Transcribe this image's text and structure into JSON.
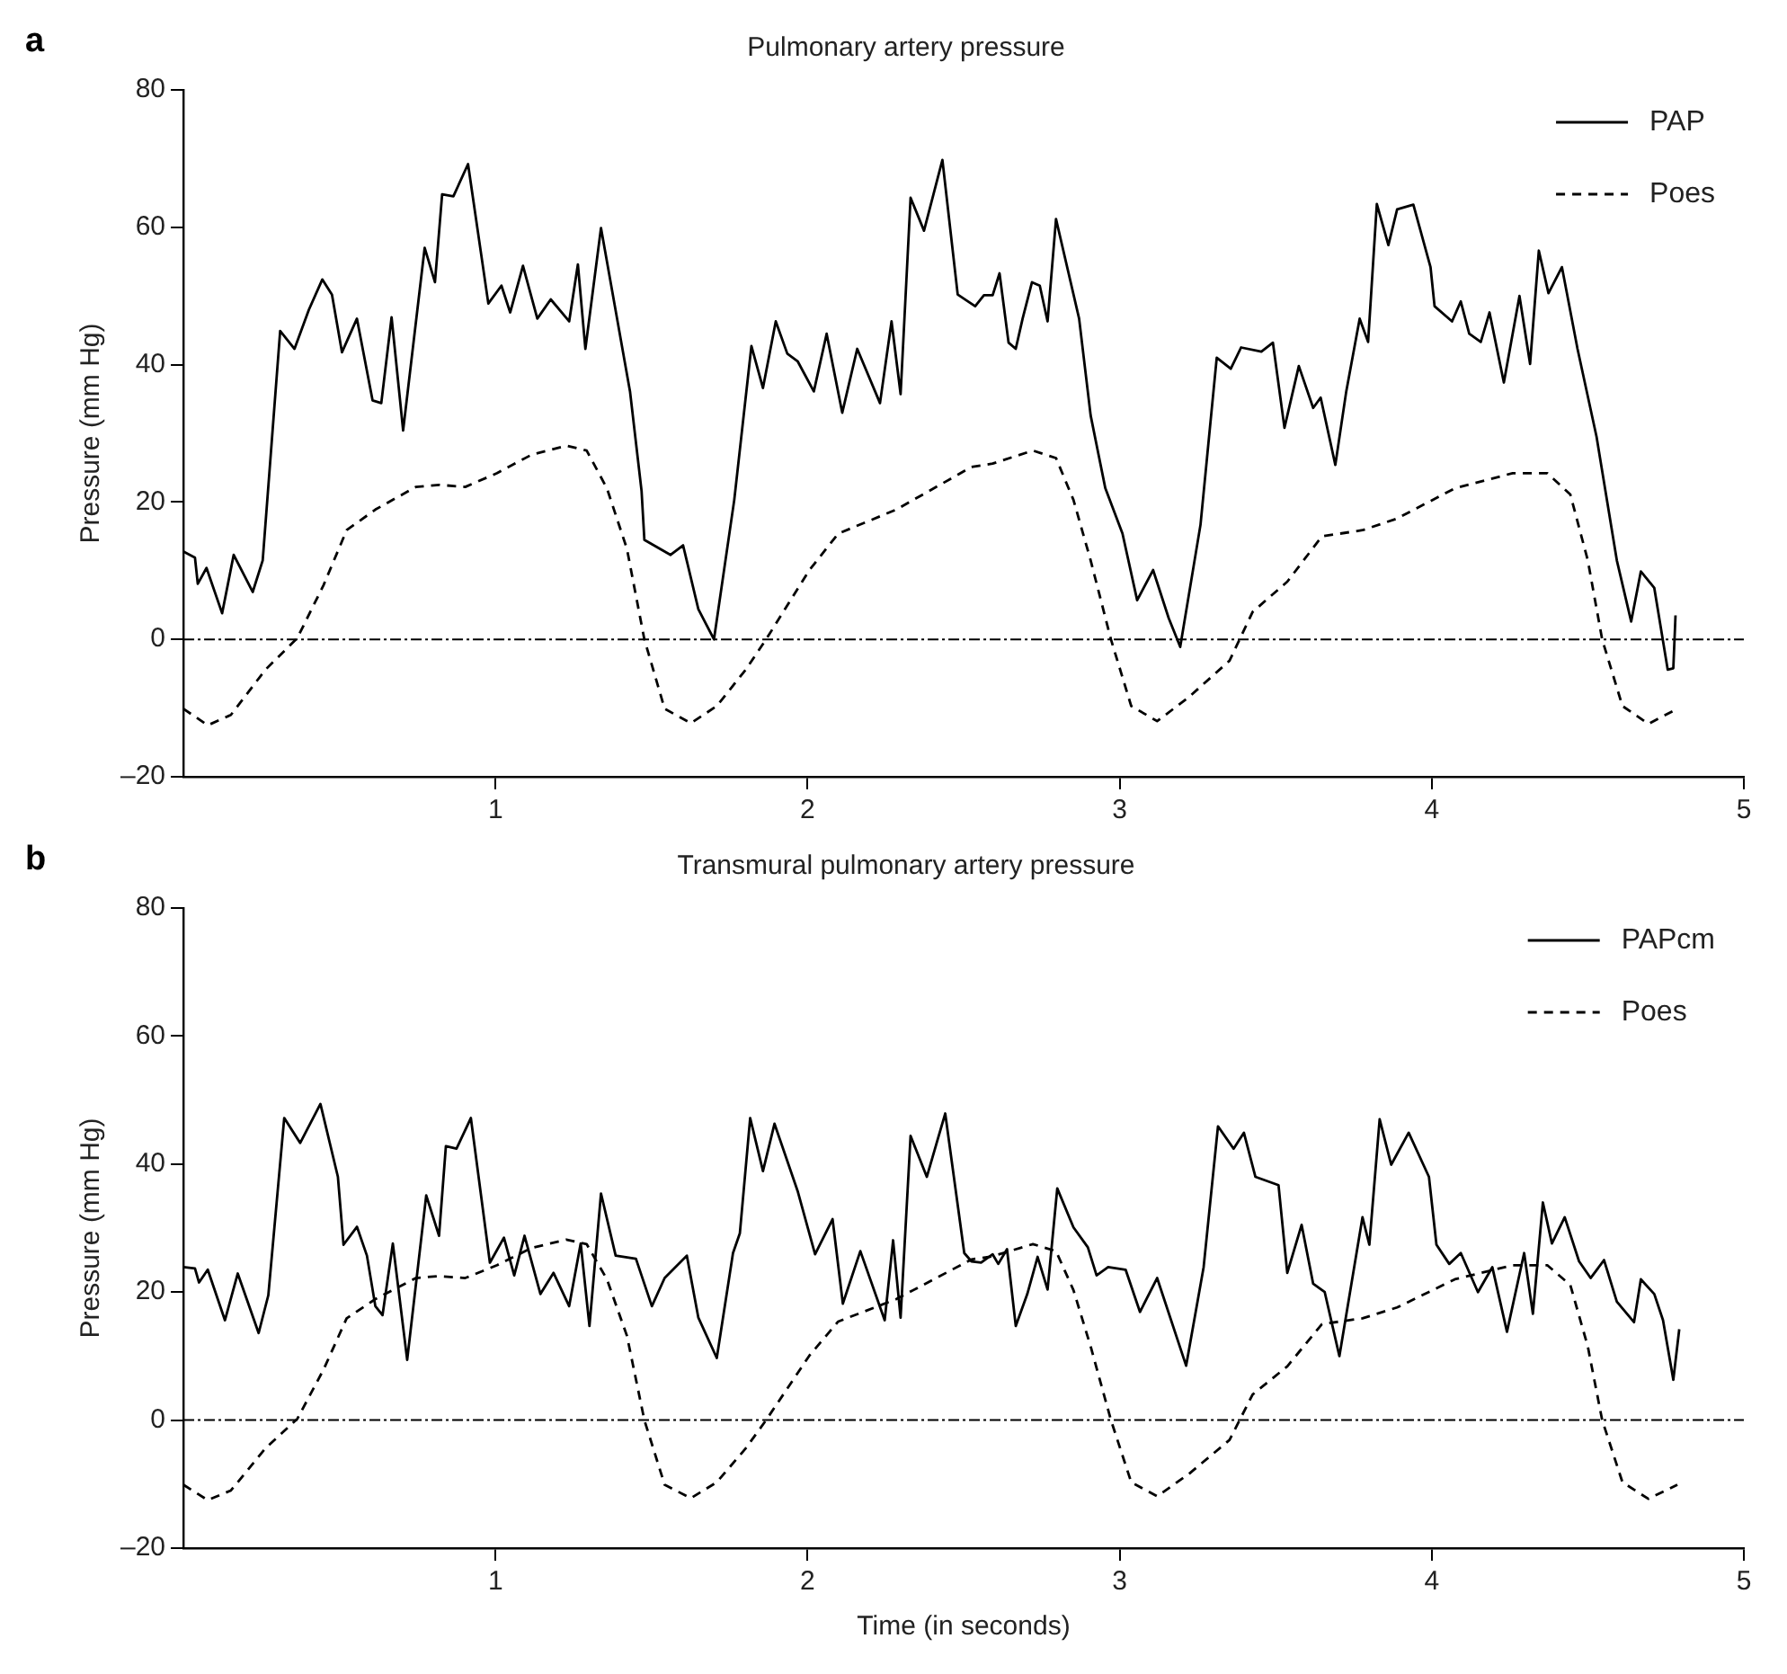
{
  "chart_data": [
    {
      "type": "line",
      "title": "Pulmonary artery pressure",
      "ylabel": "Pressure (mm Hg)",
      "annotations": [
        "a"
      ],
      "xlim": [
        0,
        5
      ],
      "xticks": [
        1,
        2,
        3,
        4,
        5
      ],
      "ylim": [
        -20,
        80
      ],
      "yticks": [
        {
          "value": -20,
          "label": "–20"
        },
        0,
        20,
        40,
        60,
        80
      ],
      "grid": false,
      "legend": "top right",
      "marker": "none",
      "ref_lines": [
        {
          "axis": "y",
          "value": 0,
          "color": "#000000"
        }
      ],
      "series": [
        {
          "name": "PAP",
          "color": "#000000",
          "line_style": "solid",
          "x": [
            0,
            0.037,
            0.046,
            0.074,
            0.124,
            0.161,
            0.222,
            0.254,
            0.31,
            0.356,
            0.402,
            0.445,
            0.476,
            0.508,
            0.556,
            0.606,
            0.634,
            0.667,
            0.704,
            0.773,
            0.806,
            0.829,
            0.865,
            0.912,
            0.977,
            1.019,
            1.047,
            1.088,
            1.134,
            1.177,
            1.236,
            1.264,
            1.288,
            1.338,
            1.431,
            1.468,
            1.477,
            1.561,
            1.601,
            1.65,
            1.7,
            1.765,
            1.82,
            1.857,
            1.898,
            1.935,
            1.968,
            2.02,
            2.061,
            2.111,
            2.159,
            2.232,
            2.269,
            2.298,
            2.33,
            2.373,
            2.432,
            2.481,
            2.537,
            2.565,
            2.593,
            2.615,
            2.644,
            2.667,
            2.689,
            2.719,
            2.744,
            2.769,
            2.796,
            2.87,
            2.907,
            2.954,
            3.009,
            3.056,
            3.107,
            3.157,
            3.194,
            3.259,
            3.311,
            3.356,
            3.389,
            3.454,
            3.491,
            3.528,
            3.574,
            3.62,
            3.644,
            3.691,
            3.726,
            3.769,
            3.796,
            3.824,
            3.861,
            3.889,
            3.941,
            3.996,
            4.009,
            4.065,
            4.093,
            4.12,
            4.157,
            4.185,
            4.231,
            4.281,
            4.315,
            4.343,
            4.374,
            4.417,
            4.467,
            4.528,
            4.593,
            4.639,
            4.67,
            4.713,
            4.756,
            4.774,
            4.781
          ],
          "values": [
            12.8,
            11.9,
            8.1,
            10.4,
            3.8,
            12.3,
            6.9,
            11.5,
            44.9,
            42.3,
            48,
            52.4,
            50.2,
            41.8,
            46.7,
            34.8,
            34.4,
            46.9,
            30.4,
            57,
            52,
            64.8,
            64.5,
            69.2,
            48.9,
            51.5,
            47.6,
            54.4,
            46.7,
            49.5,
            46.3,
            54.6,
            42.3,
            59.9,
            36.1,
            21.6,
            14.5,
            12.3,
            13.7,
            4.4,
            0,
            20.3,
            42.7,
            36.6,
            46.3,
            41.6,
            40.5,
            36.1,
            44.5,
            33,
            42.3,
            34.4,
            46.3,
            35.7,
            64.3,
            59.5,
            69.8,
            50.2,
            48.5,
            50.1,
            50.1,
            53.3,
            43.2,
            42.3,
            46.7,
            52,
            51.5,
            46.3,
            61.2,
            46.7,
            32.6,
            22,
            15.4,
            5.7,
            10.1,
            3.1,
            -1.1,
            16.7,
            41,
            39.4,
            42.5,
            41.9,
            43.2,
            30.8,
            39.8,
            33.7,
            35.2,
            25.4,
            36.1,
            46.7,
            43.3,
            63.4,
            57.4,
            62.6,
            63.3,
            54.2,
            48.5,
            46.3,
            49.2,
            44.5,
            43.3,
            47.6,
            37.4,
            50,
            40.1,
            56.6,
            50.4,
            54.2,
            42.3,
            29.5,
            11.5,
            2.6,
            9.9,
            7.5,
            -4.4,
            -4.2,
            3.5
          ]
        },
        {
          "name": "Poes",
          "color": "#000000",
          "line_style": "dashed",
          "x": [
            0,
            0.078,
            0.152,
            0.263,
            0.365,
            0.449,
            0.523,
            0.615,
            0.745,
            0.819,
            0.903,
            1.005,
            1.116,
            1.227,
            1.292,
            1.357,
            1.421,
            1.477,
            1.542,
            1.626,
            1.709,
            1.802,
            1.867,
            2.006,
            2.098,
            2.284,
            2.525,
            2.593,
            2.722,
            2.796,
            2.852,
            2.907,
            2.972,
            3.037,
            3.12,
            3.222,
            3.352,
            3.426,
            3.537,
            3.648,
            3.778,
            3.889,
            4.074,
            4.259,
            4.37,
            4.444,
            4.5,
            4.546,
            4.611,
            4.694,
            4.787
          ],
          "values": [
            -10.1,
            -12.5,
            -11,
            -4.4,
            0.2,
            7.9,
            15.9,
            18.9,
            22.2,
            22.5,
            22.2,
            24.2,
            26.9,
            28.2,
            27.5,
            22,
            13.2,
            0,
            -10.1,
            -12.2,
            -9.7,
            -4.4,
            0,
            10.1,
            15.4,
            18.9,
            25.1,
            25.6,
            27.5,
            26.4,
            20.3,
            11.5,
            0,
            -9.7,
            -11.9,
            -8.4,
            -3.1,
            4,
            8.4,
            15,
            15.9,
            17.6,
            22,
            24.2,
            24.2,
            21.1,
            11.5,
            0,
            -9.7,
            -12.3,
            -10.1
          ]
        }
      ]
    },
    {
      "type": "line",
      "title": "Transmural pulmonary artery pressure",
      "xlabel": "Time (in seconds)",
      "ylabel": "Pressure (mm Hg)",
      "annotations": [
        "b"
      ],
      "xlim": [
        0,
        5
      ],
      "xticks": [
        1,
        2,
        3,
        4,
        5
      ],
      "ylim": [
        -20,
        80
      ],
      "yticks": [
        {
          "value": -20,
          "label": "–20"
        },
        0,
        20,
        40,
        60,
        80
      ],
      "grid": false,
      "legend": "top right",
      "marker": "none",
      "ref_lines": [
        {
          "axis": "y",
          "value": 0,
          "color": "#000000"
        }
      ],
      "series": [
        {
          "name": "PAPcm",
          "color": "#000000",
          "line_style": "solid",
          "x": [
            0,
            0.037,
            0.05,
            0.078,
            0.133,
            0.174,
            0.241,
            0.272,
            0.323,
            0.374,
            0.439,
            0.495,
            0.513,
            0.556,
            0.588,
            0.615,
            0.638,
            0.671,
            0.717,
            0.778,
            0.819,
            0.841,
            0.875,
            0.921,
            0.982,
            1.027,
            1.06,
            1.093,
            1.144,
            1.186,
            1.236,
            1.273,
            1.301,
            1.338,
            1.385,
            1.45,
            1.501,
            1.542,
            1.613,
            1.65,
            1.709,
            1.761,
            1.783,
            1.816,
            1.857,
            1.894,
            1.968,
            2.024,
            2.08,
            2.113,
            2.169,
            2.247,
            2.274,
            2.298,
            2.33,
            2.382,
            2.441,
            2.502,
            2.525,
            2.556,
            2.593,
            2.611,
            2.639,
            2.667,
            2.704,
            2.737,
            2.769,
            2.8,
            2.852,
            2.898,
            2.926,
            2.963,
            3.019,
            3.065,
            3.12,
            3.213,
            3.269,
            3.315,
            3.365,
            3.398,
            3.435,
            3.509,
            3.537,
            3.583,
            3.62,
            3.657,
            3.704,
            3.778,
            3.8,
            3.833,
            3.87,
            3.926,
            3.991,
            4.015,
            4.056,
            4.093,
            4.148,
            4.194,
            4.241,
            4.296,
            4.324,
            4.356,
            4.385,
            4.426,
            4.472,
            4.509,
            4.552,
            4.593,
            4.648,
            4.67,
            4.713,
            4.741,
            4.774,
            4.793
          ],
          "values": [
            23.9,
            23.7,
            21.5,
            23.5,
            15.6,
            22.9,
            13.6,
            19.5,
            47.2,
            43.3,
            49.4,
            38,
            27.4,
            30.2,
            25.7,
            17.8,
            16.4,
            27.6,
            9.4,
            35.1,
            28.8,
            42.8,
            42.4,
            47.2,
            24.6,
            28.5,
            22.6,
            28.8,
            19.7,
            23,
            17.8,
            27.6,
            14.7,
            35.4,
            25.7,
            25.2,
            17.8,
            22.2,
            25.7,
            16,
            9.7,
            26.1,
            29.2,
            47.2,
            38.9,
            46.3,
            35.8,
            25.9,
            31.4,
            18.2,
            26.4,
            15.6,
            28.1,
            16,
            44.4,
            38,
            47.9,
            26.1,
            24.8,
            24.6,
            25.9,
            24.4,
            26.7,
            14.7,
            19.7,
            25.5,
            20.4,
            36.2,
            30.1,
            27,
            22.6,
            23.9,
            23.5,
            16.9,
            22.2,
            8.5,
            23.9,
            45.9,
            42.4,
            44.9,
            38,
            36.7,
            23,
            30.5,
            21.3,
            20,
            10,
            31.7,
            27.4,
            47,
            39.9,
            44.9,
            38,
            27.4,
            24.4,
            26.1,
            20,
            23.9,
            13.8,
            26.1,
            16.6,
            34,
            27.6,
            31.7,
            24.8,
            22.2,
            25,
            18.5,
            15.3,
            22,
            19.7,
            15.6,
            6.3,
            14.2
          ]
        },
        {
          "name": "Poes",
          "color": "#000000",
          "line_style": "dashed",
          "x": [
            0,
            0.078,
            0.152,
            0.263,
            0.365,
            0.449,
            0.523,
            0.615,
            0.745,
            0.819,
            0.903,
            1.005,
            1.116,
            1.227,
            1.292,
            1.357,
            1.421,
            1.477,
            1.542,
            1.626,
            1.709,
            1.802,
            1.867,
            2.006,
            2.098,
            2.284,
            2.525,
            2.593,
            2.722,
            2.796,
            2.852,
            2.907,
            2.972,
            3.037,
            3.12,
            3.222,
            3.352,
            3.426,
            3.537,
            3.648,
            3.778,
            3.889,
            4.074,
            4.259,
            4.37,
            4.444,
            4.5,
            4.546,
            4.611,
            4.694,
            4.787
          ],
          "values": [
            -10.1,
            -12.5,
            -11,
            -4.4,
            0.2,
            7.9,
            15.9,
            18.9,
            22.2,
            22.5,
            22.2,
            24.2,
            26.9,
            28.2,
            27.5,
            22,
            13.2,
            0,
            -10.1,
            -12.2,
            -9.7,
            -4.4,
            0,
            10.1,
            15.4,
            18.9,
            25.1,
            25.6,
            27.5,
            26.4,
            20.3,
            11.5,
            0,
            -9.7,
            -11.9,
            -8.4,
            -3.1,
            4,
            8.4,
            15,
            15.9,
            17.6,
            22,
            24.2,
            24.2,
            21.1,
            11.5,
            0,
            -9.7,
            -12.3,
            -10.1
          ]
        }
      ]
    }
  ]
}
